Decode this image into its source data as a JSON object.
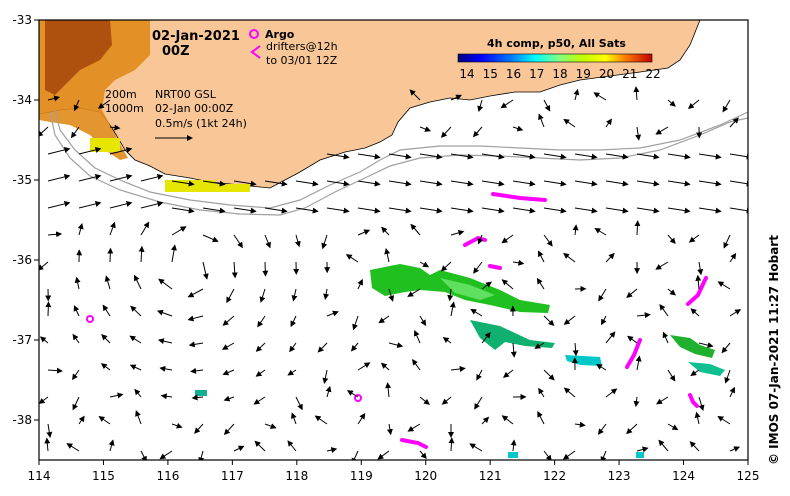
{
  "map": {
    "date_line1": "02-Jan-2021",
    "date_line2": "00Z",
    "argo_label": "Argo",
    "drifter_line1": "drifters@12h",
    "drifter_line2": "to 03/01 12Z",
    "contour_200": "200m",
    "contour_1000": "1000m",
    "product": "NRT00 GSL",
    "product_time": "02-Jan 00:00Z",
    "scale_text": "0.5m/s (1kt 24h)",
    "colorbar_title": "4h comp, p50, All Sats",
    "colorbar_ticks": [
      "14",
      "15",
      "16",
      "17",
      "18",
      "19",
      "20",
      "21",
      "22"
    ],
    "colorbar_range": [
      14,
      22
    ],
    "copyright": "©  IMOS 07-Jan-2021 11:27 Hobart",
    "x_ticks": [
      "114",
      "115",
      "116",
      "117",
      "118",
      "119",
      "120",
      "121",
      "122",
      "123",
      "124",
      "125"
    ],
    "y_ticks": [
      "-33",
      "-34",
      "-35",
      "-36",
      "-37",
      "-38"
    ],
    "lon_range": [
      114,
      125
    ],
    "lat_range": [
      -38.5,
      -33
    ],
    "colors": {
      "land": "#f8c697",
      "argo": "#ff00ff",
      "contour": "#a0a0a0"
    }
  }
}
